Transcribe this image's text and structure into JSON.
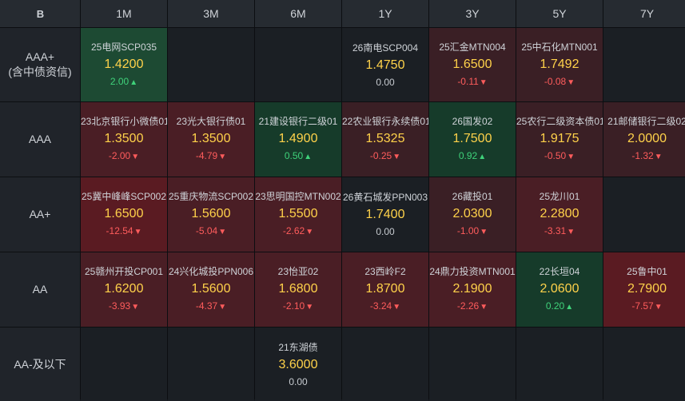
{
  "corner_icon": "B",
  "columns": [
    "1M",
    "3M",
    "6M",
    "1Y",
    "3Y",
    "5Y",
    "7Y"
  ],
  "rows": [
    {
      "label_line1": "AAA+",
      "label_line2": "(含中债资信)",
      "cells": [
        {
          "name": "25电网SCP035",
          "price": "1.4200",
          "change": "2.00",
          "dir": "up",
          "bg": "green2"
        },
        null,
        null,
        {
          "name": "26南电SCP004",
          "price": "1.4750",
          "change": "0.00",
          "dir": "flat",
          "bg": "empty"
        },
        {
          "name": "25汇金MTN004",
          "price": "1.6500",
          "change": "-0.11",
          "dir": "down",
          "bg": "red"
        },
        {
          "name": "25中石化MTN001",
          "price": "1.7492",
          "change": "-0.08",
          "dir": "down",
          "bg": "red"
        },
        null
      ]
    },
    {
      "label_line1": "AAA",
      "label_line2": "",
      "cells": [
        {
          "name": "23北京银行小微债01",
          "price": "1.3500",
          "change": "-2.00",
          "dir": "down",
          "bg": "red2"
        },
        {
          "name": "23光大银行债01",
          "price": "1.3500",
          "change": "-4.79",
          "dir": "down",
          "bg": "red2"
        },
        {
          "name": "21建设银行二级01",
          "price": "1.4900",
          "change": "0.50",
          "dir": "up",
          "bg": "green"
        },
        {
          "name": "22农业银行永续债01",
          "price": "1.5325",
          "change": "-0.25",
          "dir": "down",
          "bg": "red"
        },
        {
          "name": "26国发02",
          "price": "1.7500",
          "change": "0.92",
          "dir": "up",
          "bg": "green"
        },
        {
          "name": "25农行二级资本债01",
          "price": "1.9175",
          "change": "-0.50",
          "dir": "down",
          "bg": "red"
        },
        {
          "name": "21邮储银行二级02",
          "price": "2.0000",
          "change": "-1.32",
          "dir": "down",
          "bg": "red"
        }
      ]
    },
    {
      "label_line1": "AA+",
      "label_line2": "",
      "cells": [
        {
          "name": "25冀中峰峰SCP002",
          "price": "1.6500",
          "change": "-12.54",
          "dir": "down",
          "bg": "red3"
        },
        {
          "name": "25重庆物流SCP002",
          "price": "1.5600",
          "change": "-5.04",
          "dir": "down",
          "bg": "red2"
        },
        {
          "name": "23思明国控MTN002",
          "price": "1.5500",
          "change": "-2.62",
          "dir": "down",
          "bg": "red2"
        },
        {
          "name": "26黄石城发PPN003",
          "price": "1.7400",
          "change": "0.00",
          "dir": "flat",
          "bg": "empty"
        },
        {
          "name": "26藏投01",
          "price": "2.0300",
          "change": "-1.00",
          "dir": "down",
          "bg": "red"
        },
        {
          "name": "25龙川01",
          "price": "2.2800",
          "change": "-3.31",
          "dir": "down",
          "bg": "red2"
        },
        null
      ]
    },
    {
      "label_line1": "AA",
      "label_line2": "",
      "cells": [
        {
          "name": "25赣州开投CP001",
          "price": "1.6200",
          "change": "-3.93",
          "dir": "down",
          "bg": "red2"
        },
        {
          "name": "24兴化城投PPN006",
          "price": "1.5600",
          "change": "-4.37",
          "dir": "down",
          "bg": "red2"
        },
        {
          "name": "23怡亚02",
          "price": "1.6800",
          "change": "-2.10",
          "dir": "down",
          "bg": "red2"
        },
        {
          "name": "23西岭F2",
          "price": "1.8700",
          "change": "-3.24",
          "dir": "down",
          "bg": "red2"
        },
        {
          "name": "24鼎力投资MTN001",
          "price": "2.1900",
          "change": "-2.26",
          "dir": "down",
          "bg": "red2"
        },
        {
          "name": "22长垣04",
          "price": "2.0600",
          "change": "0.20",
          "dir": "up",
          "bg": "green"
        },
        {
          "name": "25鲁中01",
          "price": "2.7900",
          "change": "-7.57",
          "dir": "down",
          "bg": "red3"
        }
      ]
    },
    {
      "label_line1": "AA-及以下",
      "label_line2": "",
      "cells": [
        null,
        null,
        {
          "name": "21东湖债",
          "price": "3.6000",
          "change": "0.00",
          "dir": "flat",
          "bg": "empty"
        },
        null,
        null,
        null,
        null
      ]
    }
  ],
  "colors": {
    "price": "#ffd24a",
    "up": "#3fd27a",
    "down": "#ff5c5c"
  },
  "icons": {
    "up": "triangle-up-icon",
    "down": "triangle-down-icon"
  }
}
